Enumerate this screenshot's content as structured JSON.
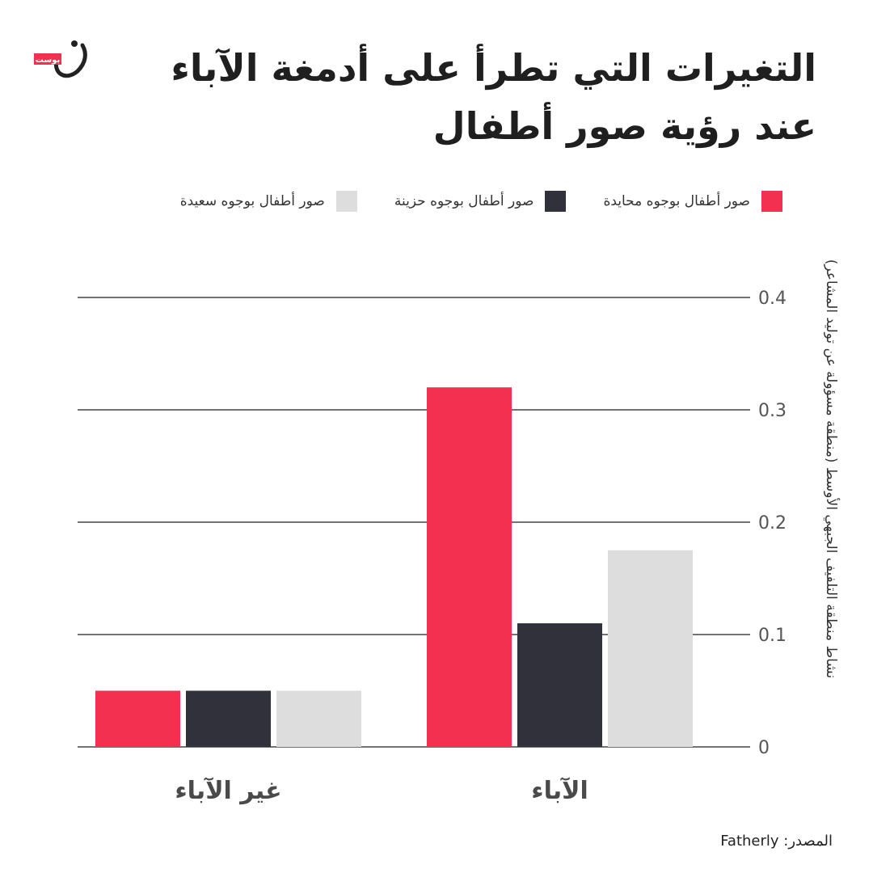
{
  "title": "التغيرات التي تطرأ على أدمغة الآباء عند رؤية صور أطفال",
  "logo": {
    "text": "بوست",
    "icon": "nun-logo-icon",
    "accent": "#f0304f"
  },
  "source": "المصدر: Fatherly",
  "chart_data": {
    "type": "bar",
    "title": "التغيرات التي تطرأ على أدمغة الآباء عند رؤية صور أطفال",
    "xlabel": "",
    "ylabel": "نشاط منطقة التلفيف الجبهي الأوسط (منطقة مسؤولة عن توليد المشاعر)",
    "categories": [
      "غير الآباء",
      "الآباء"
    ],
    "series": [
      {
        "name": "صور أطفال بوجوه محايدة",
        "color": "#f33050",
        "values": [
          0.05,
          0.32
        ]
      },
      {
        "name": "صور أطفال بوجوه حزينة",
        "color": "#31313c",
        "values": [
          0.05,
          0.11
        ]
      },
      {
        "name": "صور أطفال بوجوه سعيدة",
        "color": "#dddddd",
        "values": [
          0.05,
          0.175
        ]
      }
    ],
    "ylim": [
      0,
      0.4
    ],
    "yticks": [
      "0",
      "0.1",
      "0.2",
      "0.3",
      "0.4"
    ],
    "legend_position": "top",
    "grid": true
  }
}
